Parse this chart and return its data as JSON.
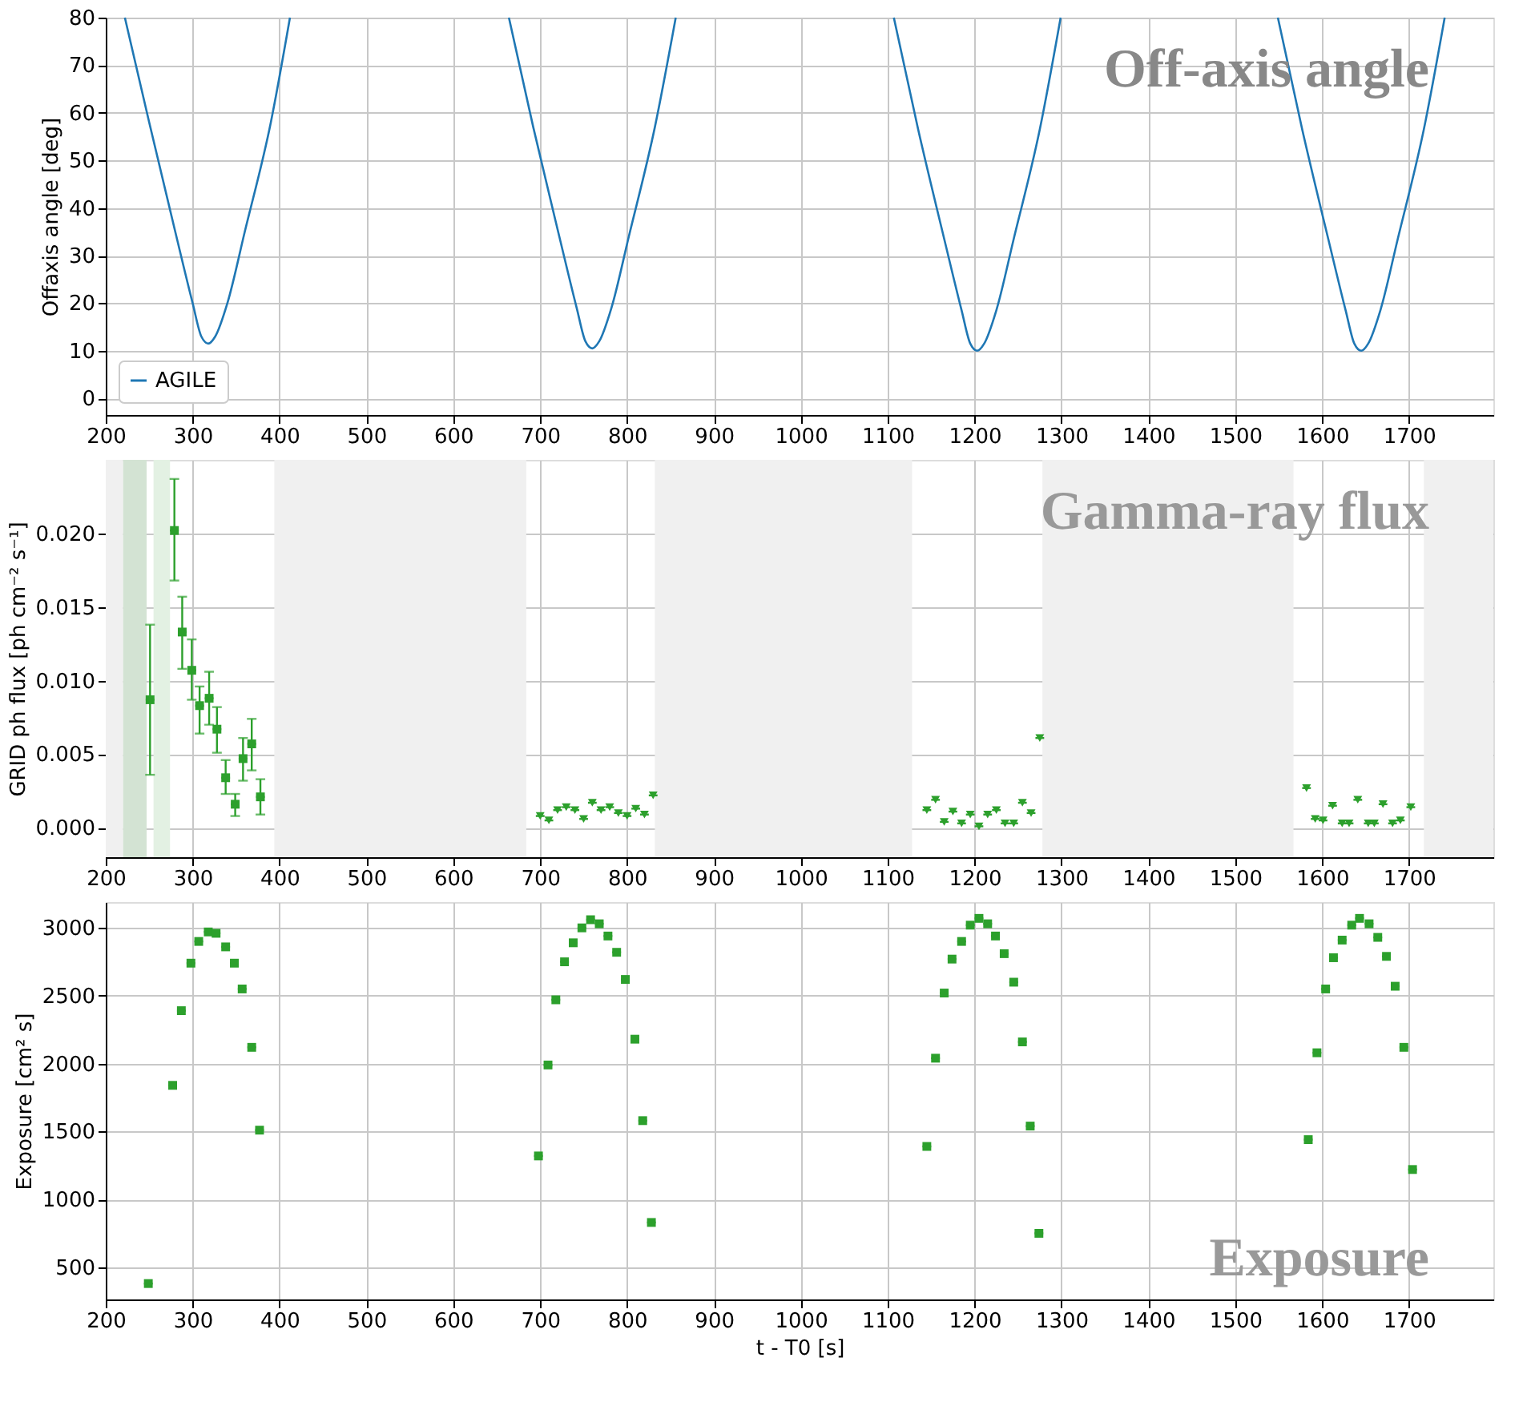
{
  "chart_data": [
    {
      "type": "line",
      "title": "Off-axis angle",
      "ylabel": "Offaxis angle [deg]",
      "xlim": [
        200,
        1797
      ],
      "xticks": [
        200,
        300,
        400,
        500,
        600,
        700,
        800,
        900,
        1000,
        1100,
        1200,
        1300,
        1400,
        1500,
        1600,
        1700
      ],
      "ylim": [
        -3.5,
        80
      ],
      "yticks": [
        0,
        10,
        20,
        30,
        40,
        50,
        60,
        70,
        80
      ],
      "grid": true,
      "legend": "bottom left",
      "line_style": "solid",
      "marker": "none",
      "series": [
        {
          "name": "AGILE",
          "color": "#1f77b4",
          "x": [
            222,
            250,
            280,
            300,
            310,
            318,
            326,
            340,
            360,
            390,
            412,
            530,
            664,
            692,
            722,
            742,
            752,
            760,
            768,
            782,
            802,
            832,
            856,
            980,
            1107,
            1135,
            1165,
            1185,
            1195,
            1203,
            1211,
            1225,
            1245,
            1275,
            1299,
            1420,
            1549,
            1577,
            1607,
            1627,
            1637,
            1645,
            1653,
            1667,
            1687,
            1717,
            1741
          ],
          "values": [
            80,
            58,
            35,
            20,
            13,
            11.5,
            13,
            20,
            35,
            58,
            80,
            null,
            80,
            57,
            34,
            19,
            12,
            10.5,
            12,
            19,
            34,
            57,
            80,
            null,
            80,
            56.5,
            33.5,
            18.5,
            11.5,
            10,
            11.5,
            18.5,
            33.5,
            56.5,
            80,
            null,
            80,
            56.5,
            33.5,
            18.5,
            11.5,
            10,
            11.5,
            18.5,
            33.5,
            56.5,
            80
          ]
        }
      ]
    },
    {
      "type": "scatter",
      "title": "Gamma-ray flux",
      "ylabel": "GRID ph flux [ph cm⁻² s⁻¹]",
      "xlim": [
        200,
        1797
      ],
      "xticks": [
        200,
        300,
        400,
        500,
        600,
        700,
        800,
        900,
        1000,
        1100,
        1200,
        1300,
        1400,
        1500,
        1600,
        1700
      ],
      "ylim": [
        -0.002,
        0.025
      ],
      "yticks": [
        {
          "value": 0,
          "label": "0.000"
        },
        {
          "value": 0.005,
          "label": "0.005"
        },
        {
          "value": 0.01,
          "label": "0.010"
        },
        {
          "value": 0.015,
          "label": "0.015"
        },
        {
          "value": 0.02,
          "label": "0.020"
        }
      ],
      "grid": true,
      "bands": [
        {
          "axis": "x",
          "from": 200,
          "to": 220,
          "color": "#f0f0f0"
        },
        {
          "axis": "x",
          "from": 220,
          "to": 247,
          "color": "#d3e3d3"
        },
        {
          "axis": "x",
          "from": 255,
          "to": 274,
          "color": "#e3f1e3"
        },
        {
          "axis": "x",
          "from": 394,
          "to": 684,
          "color": "#f0f0f0"
        },
        {
          "axis": "x",
          "from": 832,
          "to": 1128,
          "color": "#f0f0f0"
        },
        {
          "axis": "x",
          "from": 1278,
          "to": 1567,
          "color": "#f0f0f0"
        },
        {
          "axis": "x",
          "from": 1717,
          "to": 1797,
          "color": "#f0f0f0"
        }
      ],
      "series": [
        {
          "type": "scatter",
          "marker": "square",
          "color": "#2ca02c",
          "x": [
            251,
            279,
            288,
            299,
            308,
            319,
            328,
            338,
            349,
            358,
            368,
            378
          ],
          "values": [
            0.0087,
            0.0202,
            0.0133,
            0.0107,
            0.0083,
            0.0088,
            0.0067,
            0.0034,
            0.0016,
            0.0047,
            0.0057,
            0.0021
          ],
          "errors": [
            [
              0.0036,
              0.0138
            ],
            [
              0.0168,
              0.0237
            ],
            [
              0.0108,
              0.0157
            ],
            [
              0.0087,
              0.0128
            ],
            [
              0.0064,
              0.0096
            ],
            [
              0.007,
              0.0106
            ],
            [
              0.0051,
              0.0082
            ],
            [
              0.0023,
              0.0046
            ],
            [
              0.0008,
              0.0023
            ],
            [
              0.0032,
              0.0061
            ],
            [
              0.0039,
              0.0074
            ],
            [
              0.0009,
              0.0033
            ]
          ],
          "xerrors": [
            5,
            5,
            5,
            5,
            5,
            5,
            5,
            5,
            5,
            5,
            5,
            5
          ]
        },
        {
          "type": "scatter",
          "marker": "triangle",
          "color": "#2ca02c",
          "x": [
            700,
            710,
            720,
            730,
            740,
            750,
            760,
            770,
            780,
            790,
            800,
            810,
            820,
            830,
            1145,
            1155,
            1165,
            1175,
            1185,
            1195,
            1205,
            1215,
            1225,
            1235,
            1245,
            1255,
            1265,
            1275,
            1582,
            1592,
            1601,
            1612,
            1623,
            1631,
            1641,
            1653,
            1660,
            1670,
            1681,
            1690,
            1702
          ],
          "values": [
            0.0008,
            0.0005,
            0.0012,
            0.0014,
            0.0012,
            0.0006,
            0.0017,
            0.0012,
            0.0014,
            0.001,
            0.0008,
            0.0013,
            0.0009,
            0.0022,
            0.0012,
            0.0019,
            0.0004,
            0.0011,
            0.0003,
            0.0009,
            0.0001,
            0.0009,
            0.0012,
            0.0003,
            0.0003,
            0.0017,
            0.001,
            0.0061,
            0.0027,
            0.0006,
            0.0005,
            0.0015,
            0.0003,
            0.0003,
            0.0019,
            0.0003,
            0.0003,
            0.0016,
            0.0003,
            0.0005,
            0.0014
          ],
          "xerrors": [
            5,
            5,
            5,
            5,
            5,
            5,
            5,
            5,
            5,
            5,
            5,
            5,
            5,
            5,
            5,
            5,
            5,
            5,
            5,
            5,
            5,
            5,
            5,
            5,
            5,
            5,
            5,
            5,
            5,
            5,
            5,
            5,
            5,
            5,
            5,
            5,
            5,
            5,
            5,
            5,
            5
          ]
        }
      ]
    },
    {
      "type": "scatter",
      "title": "Exposure",
      "xlabel": "t - T0 [s]",
      "ylabel": "Exposure [cm² s]",
      "xlim": [
        200,
        1797
      ],
      "xticks": [
        200,
        300,
        400,
        500,
        600,
        700,
        800,
        900,
        1000,
        1100,
        1200,
        1300,
        1400,
        1500,
        1600,
        1700
      ],
      "ylim": [
        263,
        3190
      ],
      "yticks": [
        500,
        1000,
        1500,
        2000,
        2500,
        3000
      ],
      "grid": true,
      "marker": "square",
      "series": [
        {
          "color": "#2ca02c",
          "x": [
            249,
            277,
            287,
            298,
            307,
            318,
            327,
            338,
            348,
            357,
            368,
            377,
            698,
            709,
            718,
            728,
            738,
            748,
            758,
            768,
            778,
            788,
            798,
            809,
            818,
            828,
            1145,
            1155,
            1165,
            1174,
            1185,
            1195,
            1205,
            1215,
            1224,
            1234,
            1245,
            1255,
            1264,
            1274,
            1584,
            1594,
            1604,
            1613,
            1623,
            1634,
            1643,
            1654,
            1664,
            1674,
            1684,
            1694,
            1704
          ],
          "values": [
            380,
            1840,
            2390,
            2740,
            2900,
            2970,
            2960,
            2860,
            2740,
            2550,
            2120,
            1510,
            1320,
            1990,
            2470,
            2750,
            2890,
            3000,
            3060,
            3030,
            2940,
            2820,
            2620,
            2180,
            1580,
            830,
            1390,
            2040,
            2520,
            2770,
            2900,
            3020,
            3070,
            3030,
            2940,
            2810,
            2600,
            2160,
            1540,
            750,
            1440,
            2080,
            2550,
            2780,
            2910,
            3020,
            3070,
            3030,
            2930,
            2790,
            2570,
            2120,
            1220
          ],
          "xerrors": [
            5,
            5,
            5,
            5,
            5,
            5,
            5,
            5,
            5,
            5,
            5,
            5,
            5,
            5,
            5,
            5,
            5,
            5,
            5,
            5,
            5,
            5,
            5,
            5,
            5,
            5,
            5,
            5,
            5,
            5,
            5,
            5,
            5,
            5,
            5,
            5,
            5,
            5,
            5,
            5,
            5,
            5,
            5,
            5,
            5,
            5,
            5,
            5,
            5,
            5,
            5,
            5,
            5
          ]
        }
      ]
    }
  ]
}
